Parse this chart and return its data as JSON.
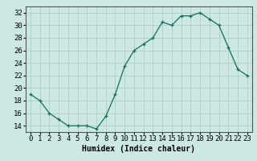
{
  "x": [
    0,
    1,
    2,
    3,
    4,
    5,
    6,
    7,
    8,
    9,
    10,
    11,
    12,
    13,
    14,
    15,
    16,
    17,
    18,
    19,
    20,
    21,
    22,
    23
  ],
  "y": [
    19,
    18,
    16,
    15,
    14,
    14,
    14,
    13.5,
    15.5,
    19,
    23.5,
    26,
    27,
    28,
    30.5,
    30,
    31.5,
    31.5,
    32,
    31,
    30,
    26.5,
    23,
    22
  ],
  "title": "",
  "xlabel": "Humidex (Indice chaleur)",
  "ylabel": "",
  "ylim": [
    13,
    33
  ],
  "xlim": [
    -0.5,
    23.5
  ],
  "yticks": [
    14,
    16,
    18,
    20,
    22,
    24,
    26,
    28,
    30,
    32
  ],
  "xticks": [
    0,
    1,
    2,
    3,
    4,
    5,
    6,
    7,
    8,
    9,
    10,
    11,
    12,
    13,
    14,
    15,
    16,
    17,
    18,
    19,
    20,
    21,
    22,
    23
  ],
  "line_color": "#1a6b5a",
  "marker": "+",
  "bg_color": "#cce8e4",
  "grid_color": "#aacfca",
  "xlabel_fontsize": 7,
  "tick_fontsize": 6.5
}
